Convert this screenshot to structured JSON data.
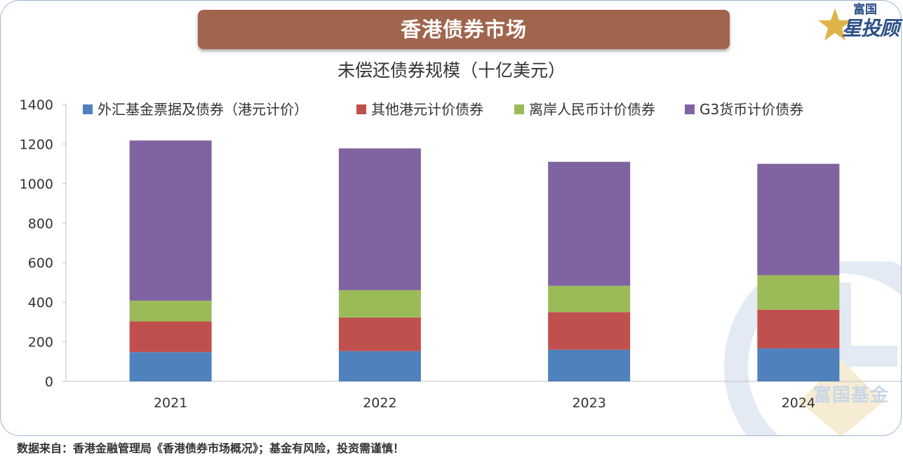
{
  "header": {
    "banner_title": "香港债券市场",
    "logo_top": "富国",
    "logo_main": "星投顾",
    "watermark_text": "富国基金"
  },
  "footer": {
    "source_note": "数据来自：香港金融管理局《香港债券市场概况》；基金有风险，投资需谨慎！"
  },
  "colors": {
    "banner": "#a0654d",
    "series": [
      "#4f81bd",
      "#c0504d",
      "#9bbb59",
      "#8064a2"
    ]
  },
  "chart_data": {
    "type": "bar",
    "stacked": true,
    "title": "未偿还债券规模（十亿美元）",
    "categories": [
      "2021",
      "2022",
      "2023",
      "2024"
    ],
    "series": [
      {
        "name": "外汇基金票据及债券（港元计价）",
        "values": [
          148,
          153,
          160,
          167
        ]
      },
      {
        "name": "其他港元计价债券",
        "values": [
          155,
          170,
          190,
          195
        ]
      },
      {
        "name": "离岸人民币计价债券",
        "values": [
          105,
          138,
          133,
          175
        ]
      },
      {
        "name": "G3货币计价债券",
        "values": [
          810,
          717,
          627,
          563
        ]
      }
    ],
    "ylim": [
      0,
      1400
    ],
    "yticks": [
      0,
      200,
      400,
      600,
      800,
      1000,
      1200,
      1400
    ],
    "legend_position": "top",
    "grid": false
  }
}
